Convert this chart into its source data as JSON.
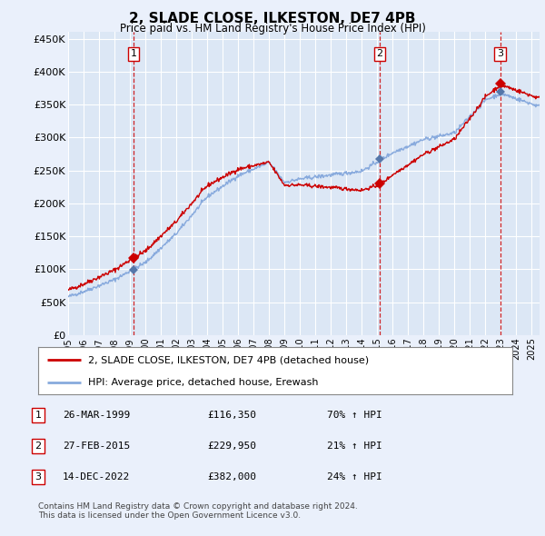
{
  "title": "2, SLADE CLOSE, ILKESTON, DE7 4PB",
  "subtitle": "Price paid vs. HM Land Registry's House Price Index (HPI)",
  "background_color": "#eaf0fb",
  "plot_bg_color": "#dce7f5",
  "grid_color": "#ffffff",
  "ylim": [
    0,
    460000
  ],
  "yticks": [
    0,
    50000,
    100000,
    150000,
    200000,
    250000,
    300000,
    350000,
    400000,
    450000
  ],
  "ytick_labels": [
    "£0",
    "£50K",
    "£100K",
    "£150K",
    "£200K",
    "£250K",
    "£300K",
    "£350K",
    "£400K",
    "£450K"
  ],
  "xlim_start": 1995.0,
  "xlim_end": 2025.5,
  "sale_events": [
    {
      "num": 1,
      "date": "26-MAR-1999",
      "price": 116350,
      "price_str": "£116,350",
      "pct": "70%",
      "year_x": 1999.23
    },
    {
      "num": 2,
      "date": "27-FEB-2015",
      "price": 229950,
      "price_str": "£229,950",
      "pct": "21%",
      "year_x": 2015.15
    },
    {
      "num": 3,
      "date": "14-DEC-2022",
      "price": 382000,
      "price_str": "£382,000",
      "pct": "24%",
      "year_x": 2022.95
    }
  ],
  "legend_line1": "2, SLADE CLOSE, ILKESTON, DE7 4PB (detached house)",
  "legend_line2": "HPI: Average price, detached house, Erewash",
  "footnote1": "Contains HM Land Registry data © Crown copyright and database right 2024.",
  "footnote2": "This data is licensed under the Open Government Licence v3.0.",
  "red_line_color": "#cc0000",
  "blue_line_color": "#88aadd",
  "sale_marker_red": "#cc0000",
  "sale_marker_blue": "#5577aa",
  "dashed_line_color": "#cc0000",
  "box_edge_color": "#cc0000"
}
